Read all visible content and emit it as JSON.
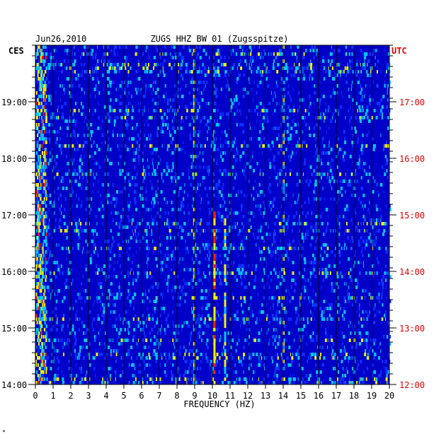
{
  "header": {
    "date": "Jun26,2010",
    "station": "ZUGS HHZ BW 01 (Zugsspitze)"
  },
  "footer": {
    "mark": "*"
  },
  "chart_data": {
    "type": "heatmap",
    "title": "ZUGS HHZ BW 01 (Zugsspitze)",
    "date": "Jun26,2010",
    "xlabel": "FREQUENCY (HZ)",
    "xlim": [
      0,
      20
    ],
    "x_ticks": [
      "0",
      "1",
      "2",
      "3",
      "4",
      "5",
      "6",
      "7",
      "8",
      "9",
      "10",
      "11",
      "12",
      "13",
      "14",
      "15",
      "16",
      "17",
      "18",
      "19",
      "20"
    ],
    "left_axis": {
      "label": "CES",
      "ticks": [
        "19:00",
        "18:00",
        "17:00",
        "16:00",
        "15:00",
        "14:00"
      ]
    },
    "right_axis": {
      "label": "UTC",
      "ticks": [
        "17:00",
        "16:00",
        "15:00",
        "14:00",
        "13:00",
        "12:00"
      ]
    },
    "colors": {
      "background": "#0000c8",
      "low": "#1030ff",
      "mid": "#00c8ff",
      "high": "#f0f000",
      "peak": "#ff2000",
      "utc_text": "#e00000",
      "axis_text": "#000000"
    },
    "features": [
      {
        "name": "low-frequency noise",
        "freq_hz": [
          0,
          0.6
        ],
        "intensity": "high"
      },
      {
        "name": "line near 9 Hz",
        "freq_hz": 8.95,
        "intensity": "mid"
      },
      {
        "name": "line near 10.1 Hz",
        "freq_hz": 10.1,
        "intensity": "high"
      },
      {
        "name": "line near 10.7 Hz",
        "freq_hz": 10.7,
        "intensity": "mid"
      },
      {
        "name": "band near 14 Hz",
        "freq_hz": 14.0,
        "intensity": "mid"
      }
    ]
  }
}
